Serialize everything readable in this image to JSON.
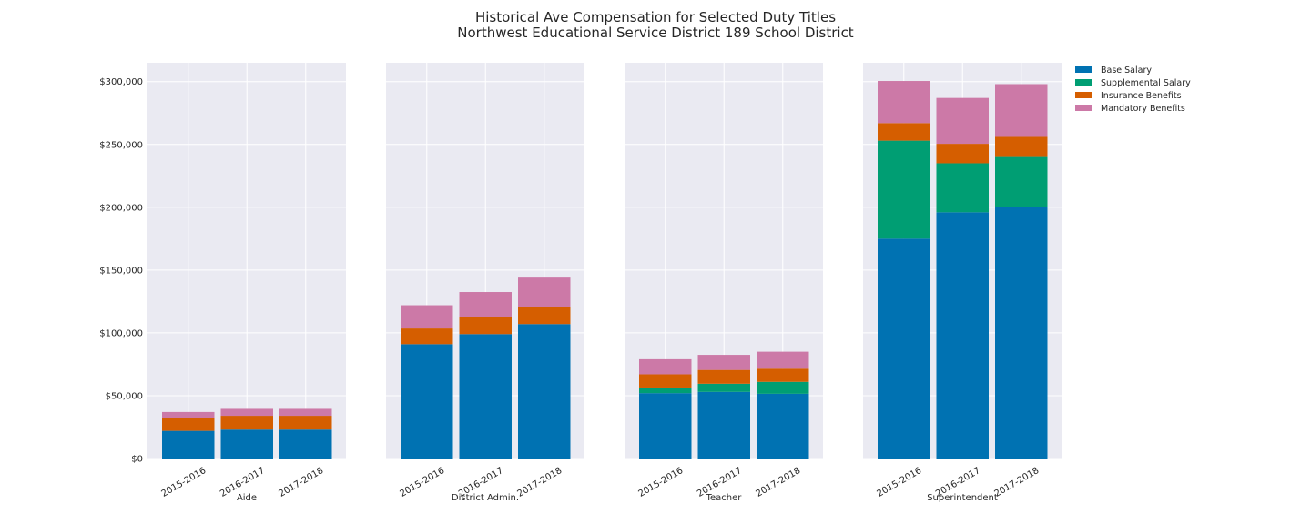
{
  "title_line1": "Historical Ave Compensation for Selected Duty Titles",
  "title_line2": "Northwest Educational Service District 189 School District",
  "colors": {
    "background": "#eaeaf2",
    "grid": "#ffffff",
    "base_salary": "#0072b2",
    "supplemental_salary": "#009e73",
    "insurance_benefits": "#d55e00",
    "mandatory_benefits": "#cc79a7"
  },
  "chart_data": {
    "type": "bar",
    "stacked": true,
    "layout": "four side-by-side panels sharing y axis",
    "title": "Historical Ave Compensation for Selected Duty Titles\nNorthwest Educational Service District 189 School District",
    "ylim": [
      0,
      315000
    ],
    "y_ticks": [
      0,
      50000,
      100000,
      150000,
      200000,
      250000,
      300000
    ],
    "y_tick_labels": [
      "$0",
      "$50,000",
      "$100,000",
      "$150,000",
      "$200,000",
      "$250,000",
      "$300,000"
    ],
    "grid": true,
    "legend_position": "right",
    "categories": [
      "2015-2016",
      "2016-2017",
      "2017-2018"
    ],
    "series_names": [
      "Base Salary",
      "Supplemental Salary",
      "Insurance Benefits",
      "Mandatory Benefits"
    ],
    "panels": [
      {
        "xlabel": "Aide",
        "series": [
          {
            "name": "Base Salary",
            "values": [
              22000,
              23000,
              23000
            ]
          },
          {
            "name": "Supplemental Salary",
            "values": [
              0,
              0,
              0
            ]
          },
          {
            "name": "Insurance Benefits",
            "values": [
              10500,
              11000,
              11000
            ]
          },
          {
            "name": "Mandatory Benefits",
            "values": [
              4500,
              5500,
              5500
            ]
          }
        ]
      },
      {
        "xlabel": "District Admin.",
        "series": [
          {
            "name": "Base Salary",
            "values": [
              91000,
              99000,
              107000
            ]
          },
          {
            "name": "Supplemental Salary",
            "values": [
              0,
              0,
              0
            ]
          },
          {
            "name": "Insurance Benefits",
            "values": [
              12500,
              13500,
              13500
            ]
          },
          {
            "name": "Mandatory Benefits",
            "values": [
              18500,
              20000,
              23500
            ]
          }
        ]
      },
      {
        "xlabel": "Teacher",
        "series": [
          {
            "name": "Base Salary",
            "values": [
              52000,
              53000,
              51500
            ]
          },
          {
            "name": "Supplemental Salary",
            "values": [
              4500,
              6500,
              9500
            ]
          },
          {
            "name": "Insurance Benefits",
            "values": [
              10500,
              11000,
              10500
            ]
          },
          {
            "name": "Mandatory Benefits",
            "values": [
              12000,
              12000,
              13500
            ]
          }
        ]
      },
      {
        "xlabel": "Superintendent",
        "series": [
          {
            "name": "Base Salary",
            "values": [
              175000,
              196000,
              200000
            ]
          },
          {
            "name": "Supplemental Salary",
            "values": [
              78000,
              39000,
              40000
            ]
          },
          {
            "name": "Insurance Benefits",
            "values": [
              14000,
              15500,
              16000
            ]
          },
          {
            "name": "Mandatory Benefits",
            "values": [
              33500,
              36500,
              42000
            ]
          }
        ]
      }
    ]
  }
}
